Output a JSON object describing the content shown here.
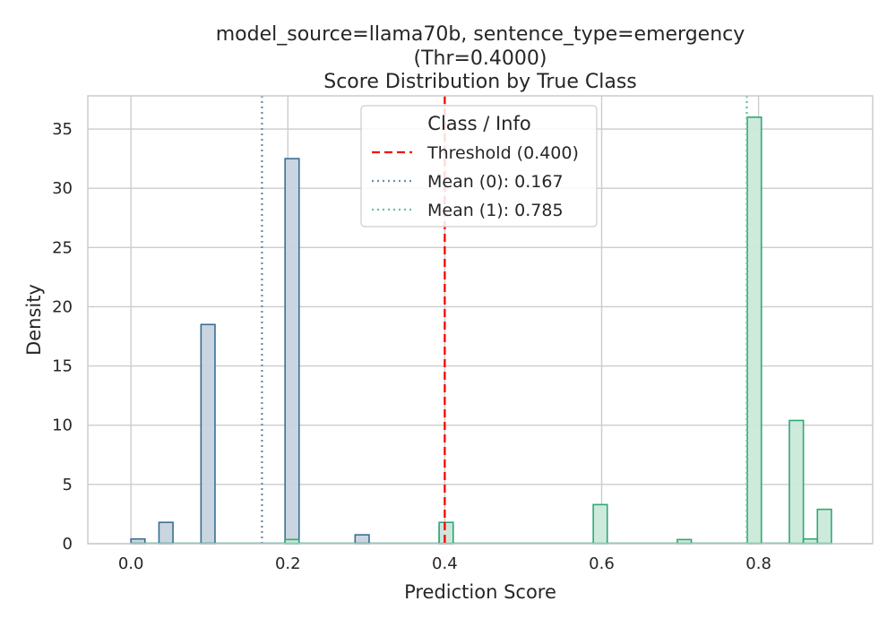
{
  "chart_data": {
    "type": "bar",
    "title": [
      "model_source=llama70b, sentence_type=emergency",
      "(Thr=0.4000)",
      "Score Distribution by True Class"
    ],
    "xlabel": "Prediction Score",
    "ylabel": "Density",
    "xlim": [
      -0.055,
      0.9455
    ],
    "ylim": [
      0,
      37.8
    ],
    "xticks": [
      0.0,
      0.2,
      0.4,
      0.6,
      0.8
    ],
    "xtick_labels": [
      "0.0",
      "0.2",
      "0.4",
      "0.6",
      "0.8"
    ],
    "yticks": [
      0,
      5,
      10,
      15,
      20,
      25,
      30,
      35
    ],
    "ytick_labels": [
      "0",
      "5",
      "10",
      "15",
      "20",
      "25",
      "30",
      "35"
    ],
    "grid": true,
    "bin_edges": [
      0.0,
      0.01786,
      0.03571,
      0.05357,
      0.07143,
      0.08929,
      0.10714,
      0.125,
      0.14286,
      0.16071,
      0.17857,
      0.19643,
      0.21429,
      0.23214,
      0.25,
      0.26786,
      0.28571,
      0.30357,
      0.32143,
      0.33929,
      0.35714,
      0.375,
      0.39286,
      0.41071,
      0.42857,
      0.44643,
      0.46429,
      0.48214,
      0.5,
      0.51786,
      0.53571,
      0.55357,
      0.57143,
      0.58929,
      0.60714,
      0.625,
      0.64286,
      0.66071,
      0.67857,
      0.69643,
      0.71429,
      0.73214,
      0.75,
      0.76786,
      0.78571,
      0.80357,
      0.82143,
      0.83929,
      0.85714,
      0.875,
      0.89286
    ],
    "series": [
      {
        "name": "0",
        "color": "#3b6e91",
        "fill": "#c6d4df",
        "values": [
          0.4,
          0,
          1.8,
          0,
          0,
          18.5,
          0,
          0,
          0,
          0,
          0,
          32.5,
          0,
          0,
          0,
          0,
          0.75,
          0,
          0,
          0,
          0,
          0,
          1.5,
          0,
          0,
          0,
          0,
          0,
          0,
          0,
          0,
          0,
          0,
          0,
          0,
          0,
          0,
          0,
          0,
          0,
          0,
          0,
          0,
          0,
          0,
          0,
          0,
          0,
          0,
          0
        ]
      },
      {
        "name": "1",
        "color": "#2fa876",
        "fill": "#cbe9da",
        "values": [
          0,
          0,
          0,
          0,
          0,
          0,
          0,
          0,
          0,
          0,
          0,
          0.35,
          0,
          0,
          0,
          0,
          0,
          0,
          0,
          0,
          0,
          0,
          1.8,
          0,
          0,
          0,
          0,
          0,
          0,
          0,
          0,
          0,
          0,
          3.3,
          0,
          0,
          0,
          0,
          0,
          0.35,
          0,
          0,
          0,
          0,
          36.0,
          0,
          0,
          10.4,
          0.4,
          2.9
        ]
      }
    ],
    "vlines": [
      {
        "x": 0.4,
        "color": "#ff0000",
        "style": "dashed",
        "label": "Threshold (0.400)"
      },
      {
        "x": 0.167,
        "color": "#6b8fae",
        "style": "dotted",
        "label": "Mean (0): 0.167"
      },
      {
        "x": 0.785,
        "color": "#5fc593",
        "style": "dotted",
        "label": "Mean (1): 0.785"
      }
    ],
    "legend": {
      "title": "Class / Info",
      "position": "upper center",
      "entries": [
        "Threshold (0.400)",
        "Mean (0): 0.167",
        "Mean (1): 0.785"
      ]
    }
  }
}
